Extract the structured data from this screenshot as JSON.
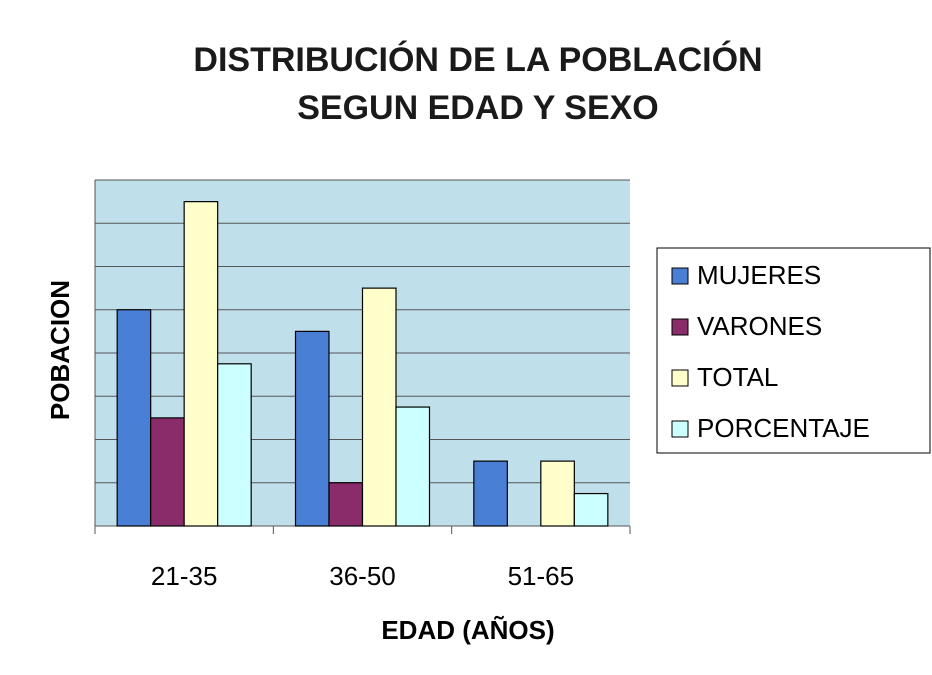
{
  "chart_data": {
    "type": "bar",
    "title": [
      "DISTRIBUCIÓN DE LA POBLACIÓN",
      "SEGUN EDAD Y SEXO"
    ],
    "x_label": "EDAD (AÑOS)",
    "y_label": "POBACION",
    "categories": [
      "21-35",
      "36-50",
      "51-65"
    ],
    "series": [
      {
        "name": "MUJERES",
        "color": "#4a7fd6",
        "values": [
          5,
          4.5,
          1.5
        ]
      },
      {
        "name": "VARONES",
        "color": "#8b2c6a",
        "values": [
          2.5,
          1,
          0
        ]
      },
      {
        "name": "TOTAL",
        "color": "#ffffcc",
        "values": [
          7.5,
          5.5,
          1.5
        ]
      },
      {
        "name": "PORCENTAJE",
        "color": "#ccffff",
        "values": [
          3.75,
          2.75,
          0.75
        ]
      }
    ],
    "ylim": [
      0,
      8
    ],
    "yticks": [
      0,
      1,
      2,
      3,
      4,
      5,
      6,
      7,
      8
    ],
    "grid": true,
    "legend": "right"
  }
}
